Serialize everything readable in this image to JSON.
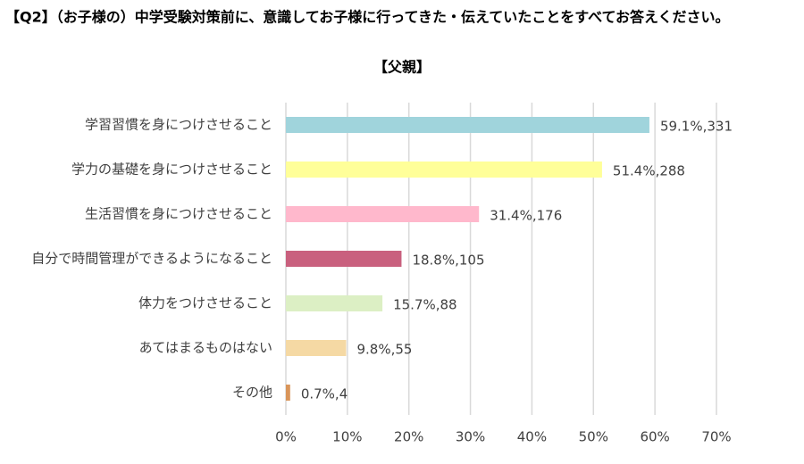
{
  "chart_data": {
    "type": "bar",
    "orientation": "horizontal",
    "title": "【Q2】（お子様の）中学受験対策前に、意識してお子様に行ってきた・伝えていたことをすべてお答えください。",
    "subtitle": "【父親】",
    "categories": [
      "学習習慣を身につけさせること",
      "学力の基礎を身につけさせること",
      "生活習慣を身につけさせること",
      "自分で時間管理ができるようになること",
      "体力をつけさせること",
      "あてはまるものはない",
      "その他"
    ],
    "values": [
      59.1,
      51.4,
      31.4,
      18.8,
      15.7,
      9.8,
      0.7
    ],
    "value_labels": [
      "59.1%,331",
      "51.4%,288",
      "31.4%,176",
      "18.8%,105",
      "15.7%,88",
      "9.8%,55",
      "0.7%,4"
    ],
    "colors": [
      "#a0d4dc",
      "#ffff99",
      "#ffb8cc",
      "#c9607e",
      "#dcefc4",
      "#f5d9a4",
      "#d9955a"
    ],
    "xlim": [
      0,
      70
    ],
    "xticks": [
      {
        "value": 0,
        "label": "0%"
      },
      {
        "value": 10,
        "label": "10%"
      },
      {
        "value": 20,
        "label": "20%"
      },
      {
        "value": 30,
        "label": "30%"
      },
      {
        "value": 40,
        "label": "40%"
      },
      {
        "value": 50,
        "label": "50%"
      },
      {
        "value": 60,
        "label": "60%"
      },
      {
        "value": 70,
        "label": "70%"
      }
    ],
    "grid": true
  }
}
